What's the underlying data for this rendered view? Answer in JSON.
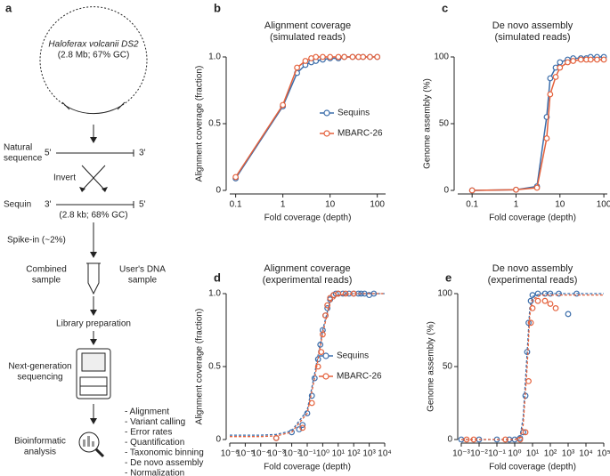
{
  "diagram": {
    "panel_label": "a",
    "genome": [
      "Haloferax volcanii DS2",
      "(2.8 Mb; 67% GC)"
    ],
    "natural_sequence": {
      "label": [
        "Natural",
        "sequence"
      ],
      "left_end": "5'",
      "right_end": "3'"
    },
    "invert": "Invert",
    "sequin": {
      "label": "Sequin",
      "left_end": "3'",
      "right_end": "5'",
      "note": "(2.8 kb; 68% GC)"
    },
    "spike_in": "Spike-in (~2%)",
    "combined_sample": [
      "Combined",
      "sample"
    ],
    "user_sample": [
      "User's DNA",
      "sample"
    ],
    "library_preparation": "Library preparation",
    "sequencing": [
      "Next-generation",
      "sequencing"
    ],
    "analysis": [
      "Bioinformatic",
      "analysis"
    ],
    "analysis_steps": [
      "- Alignment",
      "- Variant calling",
      "- Error rates",
      "- Quantification",
      "- Taxonomic binning",
      "- De novo assembly",
      "- Normalization"
    ]
  },
  "chart_data": [
    {
      "type": "line",
      "panel_label": "b",
      "title": "Alignment coverage",
      "subtitle": "(simulated reads)",
      "x_label": "Fold coverage (depth)",
      "y_label": "Alignment coverage (fraction)",
      "x_scale": "log",
      "xlim": [
        0.075,
        150
      ],
      "xticks": [
        0.1,
        1,
        10,
        100
      ],
      "ylim": [
        0,
        1
      ],
      "yticks": [
        0,
        0.5,
        {
          "value": 1,
          "label": "1.0"
        }
      ],
      "legend": "center right",
      "series": [
        {
          "name": "Sequins",
          "color": "#3b6daa",
          "x": [
            0.1,
            1,
            2,
            3,
            4,
            5,
            7,
            10,
            15,
            20,
            30,
            40,
            50,
            70,
            100
          ],
          "values": [
            0.09,
            0.63,
            0.88,
            0.94,
            0.96,
            0.97,
            0.98,
            0.99,
            0.99,
            1,
            1,
            1,
            1,
            1,
            1
          ]
        },
        {
          "name": "MBARC-26",
          "color": "#e4613c",
          "x": [
            0.1,
            1,
            2,
            3,
            4,
            5,
            7,
            10,
            15,
            20,
            30,
            40,
            50,
            70,
            100
          ],
          "values": [
            0.1,
            0.64,
            0.92,
            0.97,
            0.99,
            1,
            1,
            1,
            1,
            1,
            1,
            1,
            1,
            1,
            1
          ]
        }
      ]
    },
    {
      "type": "line",
      "panel_label": "c",
      "title": "De novo assembly",
      "subtitle": "(simulated reads)",
      "x_label": "Fold coverage (depth)",
      "y_label": "Genome assembly (%)",
      "x_scale": "log",
      "xlim": [
        0.047,
        120
      ],
      "xticks": [
        0.1,
        1,
        10,
        100
      ],
      "ylim": [
        0,
        100
      ],
      "yticks": [
        0,
        50,
        100
      ],
      "series": [
        {
          "color": "#3b6daa",
          "x": [
            0.1,
            1,
            3,
            5,
            6,
            8,
            10,
            15,
            20,
            30,
            40,
            50,
            70,
            100
          ],
          "values": [
            0,
            0.5,
            3,
            55,
            84,
            92,
            96,
            98,
            99,
            99,
            99,
            100,
            100,
            100
          ]
        },
        {
          "color": "#e4613c",
          "x": [
            0.1,
            1,
            3,
            5,
            6,
            8,
            10,
            15,
            20,
            30,
            40,
            50,
            70,
            100
          ],
          "values": [
            0,
            0.5,
            2,
            39,
            72,
            85,
            92,
            96,
            97,
            98,
            98,
            98,
            98,
            98
          ]
        }
      ]
    },
    {
      "type": "scatter",
      "panel_label": "d",
      "title": "Alignment coverage",
      "subtitle": "(experimental reads)",
      "x_label": "Fold coverage (depth)",
      "y_label": "Alignment coverage (fraction)",
      "x_scale": "log",
      "xlim": [
        1e-06,
        10000
      ],
      "xticks": [
        {
          "value": 1e-06,
          "label": "10⁻⁶"
        },
        {
          "value": 1e-05,
          "label": "10⁻⁵"
        },
        {
          "value": 0.0001,
          "label": "10⁻⁴"
        },
        {
          "value": 0.001,
          "label": "10⁻³"
        },
        {
          "value": 0.01,
          "label": "10⁻²"
        },
        {
          "value": 0.1,
          "label": "10⁻¹"
        },
        {
          "value": 1,
          "label": "10⁰"
        },
        {
          "value": 10,
          "label": "10¹"
        },
        {
          "value": 100,
          "label": "10²"
        },
        {
          "value": 1000,
          "label": "10³"
        },
        {
          "value": 10000,
          "label": "10⁴"
        }
      ],
      "ylim": [
        0,
        1
      ],
      "yticks": [
        0,
        0.5,
        {
          "value": 1,
          "label": "1.0"
        }
      ],
      "legend": "center right",
      "series": [
        {
          "name": "Sequins",
          "color": "#3b6daa",
          "x": [
            0.001,
            0.01,
            0.03,
            0.05,
            0.1,
            0.2,
            0.3,
            0.5,
            0.7,
            1,
            1.5,
            2,
            3,
            5,
            7,
            10,
            20,
            50,
            100,
            200,
            300,
            500,
            1000,
            2000
          ],
          "values": [
            0.01,
            0.05,
            0.07,
            0.1,
            0.18,
            0.3,
            0.42,
            0.55,
            0.65,
            0.75,
            0.85,
            0.9,
            0.96,
            0.99,
            1,
            1,
            1,
            1,
            1,
            1,
            1,
            1,
            0.99,
            1
          ],
          "fit": {
            "x": [
              1e-06,
              0.0001,
              0.001,
              0.01,
              0.1,
              0.3,
              1,
              3,
              10,
              100,
              10000
            ],
            "values": [
              0.03,
              0.03,
              0.035,
              0.06,
              0.2,
              0.45,
              0.75,
              0.95,
              0.99,
              1,
              1
            ]
          }
        },
        {
          "name": "MBARC-26",
          "color": "#e4613c",
          "x": [
            0.001,
            0.05,
            0.2,
            0.5,
            0.8,
            1,
            1.5,
            2,
            3,
            5,
            10,
            30,
            100
          ],
          "values": [
            0.01,
            0.08,
            0.25,
            0.5,
            0.6,
            0.72,
            0.85,
            0.92,
            0.97,
            0.99,
            1,
            1,
            1
          ],
          "fit": {
            "x": [
              1e-06,
              0.0001,
              0.001,
              0.01,
              0.1,
              0.3,
              1,
              3,
              10,
              100,
              10000
            ],
            "values": [
              0.02,
              0.02,
              0.025,
              0.05,
              0.18,
              0.42,
              0.73,
              0.94,
              0.99,
              1,
              1
            ]
          }
        }
      ]
    },
    {
      "type": "scatter",
      "panel_label": "e",
      "title": "De novo assembly",
      "subtitle": "(experimental reads)",
      "x_label": "Fold coverage (depth)",
      "y_label": "Genome assembly (%)",
      "x_scale": "log",
      "xlim": [
        0.001,
        100000
      ],
      "xticks": [
        {
          "value": 0.001,
          "label": "10⁻³"
        },
        {
          "value": 0.01,
          "label": "10⁻²"
        },
        {
          "value": 0.1,
          "label": "10⁻¹"
        },
        {
          "value": 1,
          "label": "10⁰"
        },
        {
          "value": 10,
          "label": "10¹"
        },
        {
          "value": 100,
          "label": "10²"
        },
        {
          "value": 1000,
          "label": "10³"
        },
        {
          "value": 10000,
          "label": "10⁴"
        },
        {
          "value": 100000,
          "label": "10⁵"
        }
      ],
      "ylim": [
        0,
        100
      ],
      "yticks": [
        0,
        50,
        100
      ],
      "series": [
        {
          "color": "#3b6daa",
          "x": [
            0.001,
            0.01,
            0.1,
            0.5,
            1,
            2,
            3,
            4,
            5,
            6,
            8,
            10,
            20,
            50,
            100,
            300,
            1000,
            3000
          ],
          "values": [
            0,
            0,
            0,
            0,
            0,
            1,
            5,
            30,
            60,
            80,
            95,
            99,
            100,
            100,
            100,
            100,
            86,
            100
          ],
          "fit": {
            "x": [
              0.001,
              1,
              2,
              3,
              5,
              7,
              10,
              30,
              100000
            ],
            "values": [
              0,
              0,
              2,
              15,
              60,
              90,
              98,
              100,
              100
            ]
          }
        },
        {
          "color": "#e4613c",
          "x": [
            0.002,
            0.005,
            0.3,
            2,
            4,
            6,
            8,
            10,
            20,
            50,
            100,
            200
          ],
          "values": [
            0,
            0,
            0,
            0,
            5,
            40,
            80,
            90,
            95,
            95,
            93,
            90
          ],
          "fit": {
            "x": [
              0.001,
              1,
              2,
              3,
              5,
              7,
              10,
              30,
              100000
            ],
            "values": [
              0,
              0,
              1,
              10,
              50,
              85,
              96,
              99,
              99
            ]
          }
        }
      ]
    }
  ]
}
